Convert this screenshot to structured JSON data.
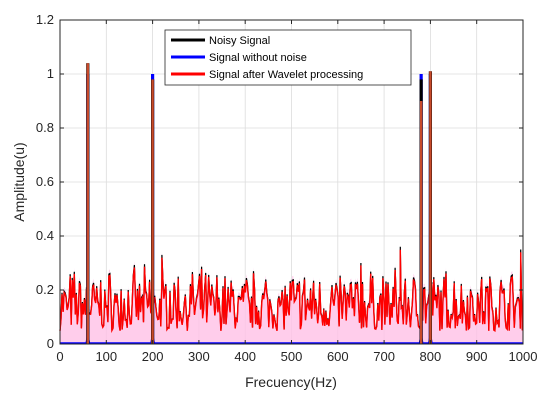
{
  "chart_data": {
    "type": "line",
    "title": "",
    "xlabel": "Frecuency(Hz)",
    "ylabel": "Amplitude(u)",
    "xlim": [
      0,
      1000
    ],
    "ylim": [
      0,
      1.2
    ],
    "xticks": [
      0,
      100,
      200,
      300,
      400,
      500,
      600,
      700,
      800,
      900,
      1000
    ],
    "yticks": [
      0,
      0.2,
      0.4,
      0.6,
      0.8,
      1,
      1.2
    ],
    "xtick_labels": [
      "0",
      "100",
      "200",
      "300",
      "400",
      "500",
      "600",
      "700",
      "800",
      "900",
      "1000"
    ],
    "ytick_labels": [
      "0",
      "0.2",
      "0.4",
      "0.6",
      "0.8",
      "1",
      "1.2"
    ],
    "grid": true,
    "legend_position": "top-center",
    "series": [
      {
        "name": "Noisy Signal",
        "color": "#000000",
        "description_values": "broadband noise 0.05-0.3 with spectral peaks",
        "peaks": [
          {
            "x": 60,
            "y": 1.04
          },
          {
            "x": 200,
            "y": 0.98
          },
          {
            "x": 780,
            "y": 0.98
          },
          {
            "x": 800,
            "y": 1.01
          }
        ]
      },
      {
        "name": "Signal without noise",
        "color": "#0000ff",
        "peaks": [
          {
            "x": 60,
            "y": 1.0
          },
          {
            "x": 200,
            "y": 1.0
          },
          {
            "x": 780,
            "y": 1.0
          },
          {
            "x": 800,
            "y": 1.0
          }
        ]
      },
      {
        "name": "Signal after Wavelet processing",
        "color": "#ff0000",
        "peaks": [
          {
            "x": 60,
            "y": 1.04
          },
          {
            "x": 200,
            "y": 0.98
          },
          {
            "x": 780,
            "y": 0.9
          },
          {
            "x": 800,
            "y": 1.01
          }
        ]
      }
    ],
    "noise_range": [
      0.05,
      0.3
    ],
    "notable_noise_spikes": [
      {
        "x": 735,
        "y": 0.36
      },
      {
        "x": 995,
        "y": 0.35
      },
      {
        "x": 650,
        "y": 0.3
      },
      {
        "x": 220,
        "y": 0.33
      }
    ]
  }
}
